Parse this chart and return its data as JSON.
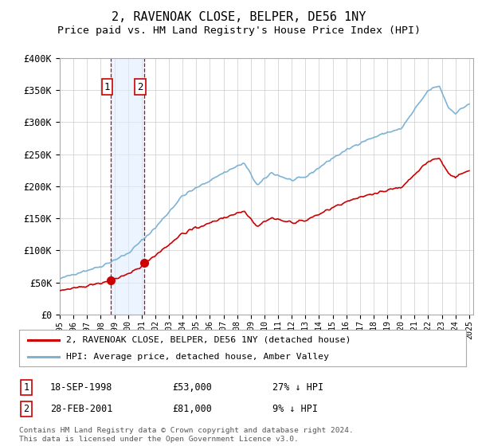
{
  "title": "2, RAVENOAK CLOSE, BELPER, DE56 1NY",
  "subtitle": "Price paid vs. HM Land Registry's House Price Index (HPI)",
  "ylim": [
    0,
    400000
  ],
  "yticks": [
    0,
    50000,
    100000,
    150000,
    200000,
    250000,
    300000,
    350000,
    400000
  ],
  "ytick_labels": [
    "£0",
    "£50K",
    "£100K",
    "£150K",
    "£200K",
    "£250K",
    "£300K",
    "£350K",
    "£400K"
  ],
  "hpi_color": "#7fb3d3",
  "price_color": "#cc0000",
  "background_color": "#ffffff",
  "grid_color": "#cccccc",
  "shade_color": "#ddeeff",
  "transactions": [
    {
      "date_num": 1998.72,
      "price": 53000,
      "label": "1"
    },
    {
      "date_num": 2001.16,
      "price": 81000,
      "label": "2"
    }
  ],
  "legend_entries": [
    {
      "label": "2, RAVENOAK CLOSE, BELPER, DE56 1NY (detached house)",
      "color": "#cc0000"
    },
    {
      "label": "HPI: Average price, detached house, Amber Valley",
      "color": "#7fb3d3"
    }
  ],
  "table_rows": [
    {
      "num": "1",
      "date": "18-SEP-1998",
      "price": "£53,000",
      "pct": "27% ↓ HPI"
    },
    {
      "num": "2",
      "date": "28-FEB-2001",
      "price": "£81,000",
      "pct": "9% ↓ HPI"
    }
  ],
  "footnote": "Contains HM Land Registry data © Crown copyright and database right 2024.\nThis data is licensed under the Open Government Licence v3.0."
}
